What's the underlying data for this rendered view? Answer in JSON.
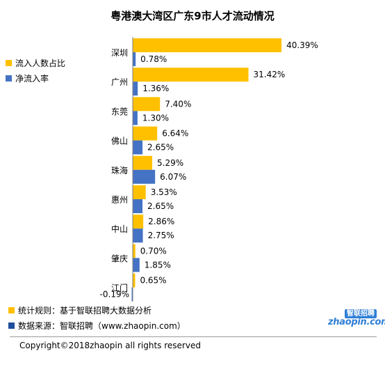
{
  "chart_data": {
    "type": "bar",
    "orientation": "horizontal",
    "title": "粤港澳大湾区广东9市人才流动情况",
    "categories": [
      "深圳",
      "广州",
      "东莞",
      "佛山",
      "珠海",
      "惠州",
      "中山",
      "肇庆",
      "江门"
    ],
    "series": [
      {
        "name": "流入人数占比",
        "color": "#ffc000",
        "values": [
          40.39,
          31.42,
          7.4,
          6.64,
          5.29,
          3.53,
          2.86,
          0.7,
          0.65
        ],
        "labels": [
          "40.39%",
          "31.42%",
          "7.40%",
          "6.64%",
          "5.29%",
          "3.53%",
          "2.86%",
          "0.70%",
          "0.65%"
        ]
      },
      {
        "name": "净流入率",
        "color": "#4472c4",
        "values": [
          0.78,
          1.36,
          1.3,
          2.65,
          6.07,
          2.65,
          2.75,
          1.85,
          -0.19
        ],
        "labels": [
          "0.78%",
          "1.36%",
          "1.30%",
          "2.65%",
          "6.07%",
          "2.65%",
          "2.75%",
          "1.85%",
          "-0.19%"
        ]
      }
    ],
    "legend_position": "left",
    "grid": false
  },
  "notes": [
    {
      "icon": "yellow-square-icon",
      "text": "统计规则：基于智联招聘大数据分析"
    },
    {
      "icon": "blue-square-icon",
      "text": "数据来源：智联招聘（www.zhaopin.com）"
    }
  ],
  "logo": {
    "top": "智联招聘",
    "main": "zhaopin.com"
  },
  "copyright": "Copyright©2018zhaopin all rights reserved"
}
